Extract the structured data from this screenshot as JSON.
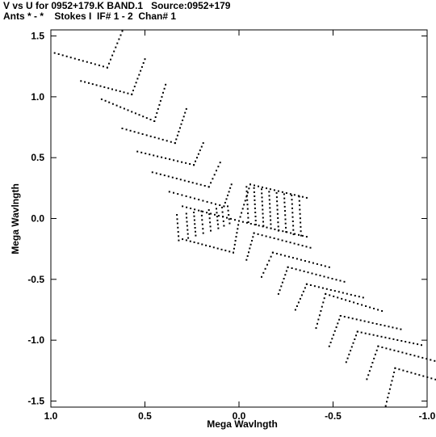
{
  "chart_data": {
    "type": "scatter",
    "title": "V vs U for 0952+179.K BAND.1   Source:0952+179",
    "subtitle": "Ants * - *    Stokes I  IF# 1 - 2  Chan# 1",
    "xlabel": "Mega Wavlngth",
    "ylabel": "Mega Wavlngth",
    "xlim": [
      1.0,
      -1.0
    ],
    "ylim": [
      -1.55,
      1.55
    ],
    "xticks": [
      1.0,
      0.5,
      0.0,
      -0.5,
      -1.0
    ],
    "xtick_labels": [
      "1.0",
      "0.5",
      "0.0",
      "-0.5",
      "-1.0"
    ],
    "yticks": [
      1.5,
      1.0,
      0.5,
      0.0,
      -0.5,
      -1.0,
      -1.5
    ],
    "ytick_labels": [
      "1.5",
      "1.0",
      "0.5",
      "0.0",
      "-0.5",
      "-1.0",
      "-1.5"
    ],
    "grid": false,
    "point_color": "#000000",
    "tracks": [
      {
        "x": [
          0.98,
          0.7
        ],
        "y": [
          1.36,
          1.24
        ]
      },
      {
        "x": [
          0.7,
          0.62
        ],
        "y": [
          1.24,
          1.54
        ]
      },
      {
        "x": [
          0.84,
          0.57
        ],
        "y": [
          1.13,
          1.02
        ]
      },
      {
        "x": [
          0.57,
          0.5
        ],
        "y": [
          1.02,
          1.31
        ]
      },
      {
        "x": [
          0.73,
          0.45
        ],
        "y": [
          0.98,
          0.8
        ]
      },
      {
        "x": [
          0.45,
          0.39
        ],
        "y": [
          0.8,
          1.1
        ]
      },
      {
        "x": [
          0.62,
          0.34
        ],
        "y": [
          0.74,
          0.62
        ]
      },
      {
        "x": [
          0.34,
          0.28
        ],
        "y": [
          0.62,
          0.9
        ]
      },
      {
        "x": [
          0.54,
          0.24
        ],
        "y": [
          0.55,
          0.44
        ]
      },
      {
        "x": [
          0.24,
          0.19
        ],
        "y": [
          0.44,
          0.62
        ]
      },
      {
        "x": [
          0.46,
          0.16
        ],
        "y": [
          0.38,
          0.26
        ]
      },
      {
        "x": [
          0.16,
          0.1
        ],
        "y": [
          0.26,
          0.46
        ]
      },
      {
        "x": [
          0.37,
          0.08
        ],
        "y": [
          0.22,
          0.1
        ]
      },
      {
        "x": [
          0.08,
          0.04
        ],
        "y": [
          0.1,
          0.28
        ]
      },
      {
        "x": [
          0.3,
          0.0
        ],
        "y": [
          0.1,
          -0.02
        ]
      },
      {
        "x": [
          0.0,
          -0.06
        ],
        "y": [
          -0.02,
          0.28
        ]
      },
      {
        "x": [
          0.33,
          0.32
        ],
        "y": [
          0.03,
          -0.18
        ]
      },
      {
        "x": [
          0.28,
          0.27
        ],
        "y": [
          0.04,
          -0.16
        ]
      },
      {
        "x": [
          0.24,
          0.23
        ],
        "y": [
          0.05,
          -0.14
        ]
      },
      {
        "x": [
          0.2,
          0.19
        ],
        "y": [
          0.06,
          -0.12
        ]
      },
      {
        "x": [
          0.16,
          0.15
        ],
        "y": [
          0.07,
          -0.1
        ]
      },
      {
        "x": [
          0.12,
          0.11
        ],
        "y": [
          0.08,
          -0.08
        ]
      },
      {
        "x": [
          0.09,
          0.08
        ],
        "y": [
          0.09,
          -0.06
        ]
      },
      {
        "x": [
          0.06,
          0.05
        ],
        "y": [
          0.1,
          -0.04
        ]
      },
      {
        "x": [
          0.3,
          0.03
        ],
        "y": [
          -0.17,
          -0.28
        ]
      },
      {
        "x": [
          0.03,
          0.0
        ],
        "y": [
          -0.28,
          -0.02
        ]
      },
      {
        "x": [
          0.0,
          -0.36
        ],
        "y": [
          -0.02,
          -0.15
        ]
      },
      {
        "x": [
          -0.06,
          -0.36
        ],
        "y": [
          0.28,
          0.17
        ]
      },
      {
        "x": [
          -0.04,
          -0.05
        ],
        "y": [
          0.26,
          -0.03
        ]
      },
      {
        "x": [
          -0.08,
          -0.09
        ],
        "y": [
          0.25,
          -0.05
        ]
      },
      {
        "x": [
          -0.12,
          -0.13
        ],
        "y": [
          0.24,
          -0.06
        ]
      },
      {
        "x": [
          -0.16,
          -0.17
        ],
        "y": [
          0.22,
          -0.08
        ]
      },
      {
        "x": [
          -0.2,
          -0.21
        ],
        "y": [
          0.21,
          -0.1
        ]
      },
      {
        "x": [
          -0.24,
          -0.25
        ],
        "y": [
          0.2,
          -0.11
        ]
      },
      {
        "x": [
          -0.28,
          -0.29
        ],
        "y": [
          0.19,
          -0.13
        ]
      },
      {
        "x": [
          -0.32,
          -0.33
        ],
        "y": [
          0.18,
          -0.14
        ]
      },
      {
        "x": [
          -0.08,
          -0.38
        ],
        "y": [
          -0.12,
          -0.24
        ]
      },
      {
        "x": [
          -0.08,
          -0.04
        ],
        "y": [
          -0.12,
          -0.34
        ]
      },
      {
        "x": [
          -0.18,
          -0.48
        ],
        "y": [
          -0.28,
          -0.4
        ]
      },
      {
        "x": [
          -0.18,
          -0.12
        ],
        "y": [
          -0.28,
          -0.48
        ]
      },
      {
        "x": [
          -0.26,
          -0.56
        ],
        "y": [
          -0.4,
          -0.52
        ]
      },
      {
        "x": [
          -0.26,
          -0.21
        ],
        "y": [
          -0.4,
          -0.62
        ]
      },
      {
        "x": [
          -0.36,
          -0.66
        ],
        "y": [
          -0.54,
          -0.65
        ]
      },
      {
        "x": [
          -0.36,
          -0.3
        ],
        "y": [
          -0.54,
          -0.75
        ]
      },
      {
        "x": [
          -0.46,
          -0.76
        ],
        "y": [
          -0.62,
          -0.76
        ]
      },
      {
        "x": [
          -0.46,
          -0.41
        ],
        "y": [
          -0.62,
          -0.9
        ]
      },
      {
        "x": [
          -0.54,
          -0.86
        ],
        "y": [
          -0.8,
          -0.91
        ]
      },
      {
        "x": [
          -0.54,
          -0.48
        ],
        "y": [
          -0.8,
          -1.05
        ]
      },
      {
        "x": [
          -0.63,
          -0.97
        ],
        "y": [
          -0.93,
          -1.04
        ]
      },
      {
        "x": [
          -0.63,
          -0.57
        ],
        "y": [
          -0.93,
          -1.18
        ]
      },
      {
        "x": [
          -0.74,
          -1.04
        ],
        "y": [
          -1.05,
          -1.17
        ]
      },
      {
        "x": [
          -0.74,
          -0.68
        ],
        "y": [
          -1.05,
          -1.32
        ]
      },
      {
        "x": [
          -0.83,
          -1.13
        ],
        "y": [
          -1.23,
          -1.36
        ]
      },
      {
        "x": [
          -0.83,
          -0.78
        ],
        "y": [
          -1.23,
          -1.54
        ]
      }
    ]
  }
}
